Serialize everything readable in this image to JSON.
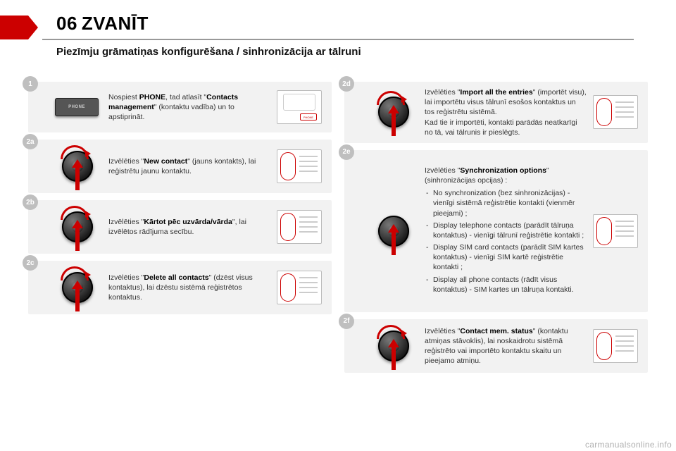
{
  "header": {
    "chapter_num": "06",
    "chapter_title": "ZVANĪT",
    "subtitle": "Piezīmju grāmatiņas konfigurēšana / sinhronizācija ar tālruni"
  },
  "left_steps": [
    {
      "badge": "1",
      "icon_type": "phone",
      "icon_label": "PHONE",
      "right_panel": "top",
      "right_panel_btn": "PHONE",
      "text_html": "Nospiest <b>PHONE</b>, tad atlasīt \"<b>Contacts management</b>\" (kontaktu vadība) un to apstiprināt."
    },
    {
      "badge": "2a",
      "icon_type": "knob",
      "show_curve": true,
      "right_panel": "std",
      "text_html": "Izvēlēties \"<b>New contact</b>\" (jauns kontakts), lai reģistrētu jaunu kontaktu."
    },
    {
      "badge": "2b",
      "icon_type": "knob",
      "show_curve": true,
      "right_panel": "std",
      "text_html": "Izvēlēties \"<b>Kārtot pēc uzvārda/vārda</b>\", lai izvēlētos rādījuma secību."
    },
    {
      "badge": "2c",
      "icon_type": "knob",
      "show_curve": true,
      "right_panel": "std",
      "text_html": "Izvēlēties \"<b>Delete all contacts</b>\" (dzēst visus kontaktus), lai dzēstu sistēmā reģistrētos kontaktus."
    }
  ],
  "right_steps": [
    {
      "badge": "2d",
      "icon_type": "knob",
      "show_curve": true,
      "right_panel": "std",
      "text_html": "Izvēlēties \"<b>Import all the entries</b>\" (importēt visu), lai importētu visus tālrunī esošos kontaktus un tos reģistrētu sistēmā.<br>Kad tie ir importēti, kontakti parādās neatkarīgi no tā, vai tālrunis ir pieslēgts."
    },
    {
      "badge": "2e",
      "icon_type": "knob",
      "show_curve": false,
      "right_panel": "std",
      "tall": true,
      "text_html": "Izvēlēties \"<b>Synchronization options</b>\" (sinhronizācijas opcijas) :",
      "list": [
        "No synchronization (bez sinhronizācijas) - vienīgi sistēmā reģistrētie kontakti (vienmēr pieejami) ;",
        "Display telephone contacts (parādīt tālruņa kontaktus) - vienīgi tālrunī reģistrētie kontakti ;",
        "Display SIM card contacts (parādīt SIM kartes kontaktus) - vienīgi SIM kartē reģistrētie kontakti ;",
        "Display all phone contacts (rādīt visus kontaktus) - SIM kartes un tālruņa kontakti."
      ]
    },
    {
      "badge": "2f",
      "icon_type": "knob",
      "show_curve": true,
      "right_panel": "std",
      "text_html": "Izvēlēties \"<b>Contact mem. status</b>\" (kontaktu atmiņas stāvoklis), lai noskaidrotu sistēmā reģistrēto vai importēto kontaktu skaitu un pieejamo atmiņu."
    }
  ],
  "watermark": "carmanualsonline.info",
  "colors": {
    "accent": "#c00",
    "step_bg": "#f2f2f2",
    "badge_bg": "#bfbfbf"
  }
}
